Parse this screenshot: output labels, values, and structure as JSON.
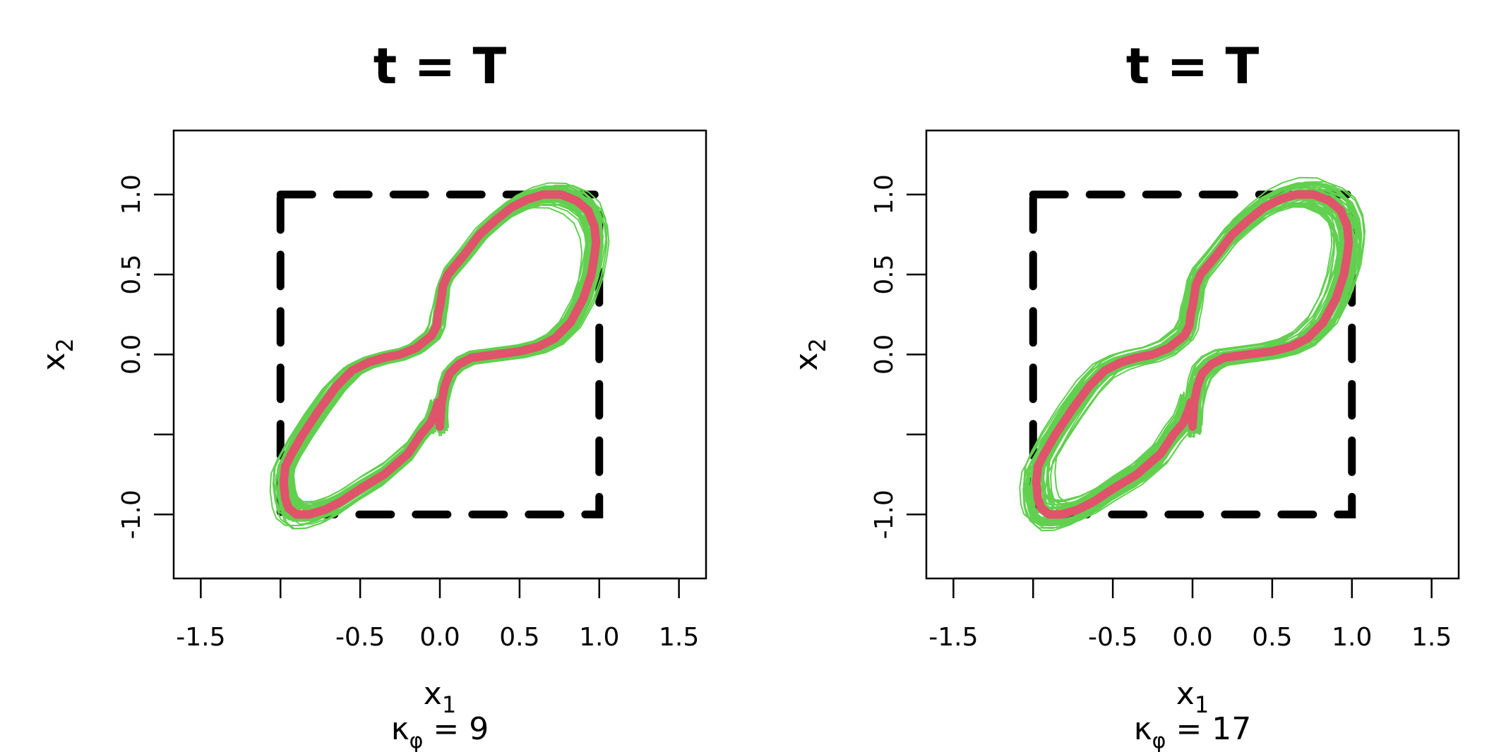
{
  "chart_data": [
    {
      "type": "line",
      "title": "t = T",
      "xlabel": {
        "base": "x",
        "sub": "1"
      },
      "ylabel": {
        "base": "x",
        "sub": "2"
      },
      "caption": {
        "base": "κ",
        "sub": "φ",
        "rest": " = 9"
      },
      "xlim": [
        -1.67,
        1.67
      ],
      "ylim": [
        -1.4,
        1.4
      ],
      "x_ticks": [
        -1.5,
        -1.0,
        -0.5,
        0.0,
        0.5,
        1.0,
        1.5
      ],
      "x_tick_labels": [
        "-1.5",
        "",
        "-0.5",
        "0.0",
        "0.5",
        "1.0",
        "1.5"
      ],
      "y_ticks": [
        -1.0,
        -0.5,
        0.0,
        0.5,
        1.0
      ],
      "y_tick_labels": [
        "-1.0",
        "",
        "0.0",
        "0.5",
        "1.0"
      ],
      "box": {
        "x": [
          -1.0,
          1.0
        ],
        "y": [
          -1.0,
          1.0
        ],
        "style": "dashed"
      },
      "target_curve": {
        "color": "#DF536B",
        "x": [
          0.0,
          0.01,
          0.03,
          0.06,
          0.12,
          0.2,
          0.35,
          0.5,
          0.62,
          0.72,
          0.82,
          0.9,
          0.95,
          0.97,
          0.98,
          0.97,
          0.93,
          0.86,
          0.76,
          0.65,
          0.55,
          0.45,
          0.35,
          0.25,
          0.15,
          0.05,
          0.02,
          0.01,
          0.0,
          -0.01,
          -0.02,
          -0.05,
          -0.15,
          -0.25,
          -0.35,
          -0.45,
          -0.55,
          -0.65,
          -0.76,
          -0.86,
          -0.93,
          -0.97,
          -0.98,
          -0.97,
          -0.95,
          -0.9,
          -0.82,
          -0.72,
          -0.62,
          -0.5,
          -0.35,
          -0.2,
          -0.12,
          -0.06,
          -0.03,
          -0.01,
          0.0
        ],
        "y": [
          -0.45,
          -0.3,
          -0.2,
          -0.12,
          -0.06,
          -0.02,
          0.0,
          0.02,
          0.05,
          0.1,
          0.2,
          0.35,
          0.5,
          0.62,
          0.7,
          0.8,
          0.9,
          0.96,
          1.0,
          1.0,
          0.97,
          0.92,
          0.84,
          0.75,
          0.62,
          0.5,
          0.43,
          0.36,
          0.3,
          0.26,
          0.18,
          0.12,
          0.04,
          0.0,
          -0.02,
          -0.05,
          -0.1,
          -0.2,
          -0.35,
          -0.5,
          -0.62,
          -0.7,
          -0.8,
          -0.9,
          -0.96,
          -1.0,
          -1.0,
          -0.97,
          -0.92,
          -0.84,
          -0.75,
          -0.62,
          -0.5,
          -0.43,
          -0.36,
          -0.3,
          -0.45
        ]
      },
      "samples": {
        "color": "#61D04F",
        "count": 60,
        "spread": 0.055
      }
    },
    {
      "type": "line",
      "title": "t = T",
      "xlabel": {
        "base": "x",
        "sub": "1"
      },
      "ylabel": {
        "base": "x",
        "sub": "2"
      },
      "caption": {
        "base": "κ",
        "sub": "φ",
        "rest": " = 17"
      },
      "xlim": [
        -1.67,
        1.67
      ],
      "ylim": [
        -1.4,
        1.4
      ],
      "x_ticks": [
        -1.5,
        -1.0,
        -0.5,
        0.0,
        0.5,
        1.0,
        1.5
      ],
      "x_tick_labels": [
        "-1.5",
        "",
        "-0.5",
        "0.0",
        "0.5",
        "1.0",
        "1.5"
      ],
      "y_ticks": [
        -1.0,
        -0.5,
        0.0,
        0.5,
        1.0
      ],
      "y_tick_labels": [
        "-1.0",
        "",
        "0.0",
        "0.5",
        "1.0"
      ],
      "box": {
        "x": [
          -1.0,
          1.0
        ],
        "y": [
          -1.0,
          1.0
        ],
        "style": "dashed"
      },
      "target_curve": {
        "color": "#DF536B",
        "x": [
          0.0,
          0.01,
          0.03,
          0.06,
          0.12,
          0.2,
          0.35,
          0.5,
          0.62,
          0.72,
          0.82,
          0.9,
          0.95,
          0.97,
          0.98,
          0.97,
          0.93,
          0.86,
          0.76,
          0.65,
          0.55,
          0.45,
          0.35,
          0.25,
          0.15,
          0.05,
          0.02,
          0.01,
          0.0,
          -0.01,
          -0.02,
          -0.05,
          -0.15,
          -0.25,
          -0.35,
          -0.45,
          -0.55,
          -0.65,
          -0.76,
          -0.86,
          -0.93,
          -0.97,
          -0.98,
          -0.97,
          -0.95,
          -0.9,
          -0.82,
          -0.72,
          -0.62,
          -0.5,
          -0.35,
          -0.2,
          -0.12,
          -0.06,
          -0.03,
          -0.01,
          0.0
        ],
        "y": [
          -0.45,
          -0.3,
          -0.2,
          -0.12,
          -0.06,
          -0.02,
          0.0,
          0.02,
          0.05,
          0.1,
          0.2,
          0.35,
          0.5,
          0.62,
          0.7,
          0.8,
          0.9,
          0.96,
          1.0,
          1.0,
          0.97,
          0.92,
          0.84,
          0.75,
          0.62,
          0.5,
          0.43,
          0.36,
          0.3,
          0.26,
          0.18,
          0.12,
          0.04,
          0.0,
          -0.02,
          -0.05,
          -0.1,
          -0.2,
          -0.35,
          -0.5,
          -0.62,
          -0.7,
          -0.8,
          -0.9,
          -0.96,
          -1.0,
          -1.0,
          -0.97,
          -0.92,
          -0.84,
          -0.75,
          -0.62,
          -0.5,
          -0.43,
          -0.36,
          -0.3,
          -0.45
        ]
      },
      "samples": {
        "color": "#61D04F",
        "count": 60,
        "spread": 0.065
      }
    }
  ]
}
